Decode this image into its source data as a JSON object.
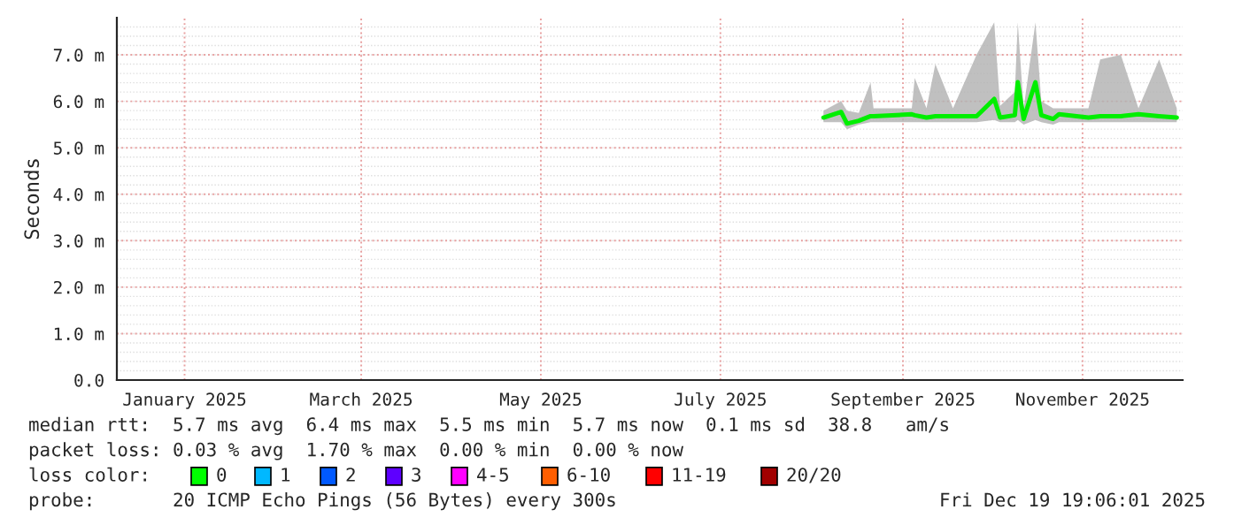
{
  "chart_data": {
    "type": "line",
    "ylabel": "Seconds",
    "x": [
      "2025-08-19",
      "2025-08-25",
      "2025-08-27",
      "2025-08-31",
      "2025-09-04",
      "2025-09-05",
      "2025-09-18",
      "2025-09-19",
      "2025-09-23",
      "2025-09-26",
      "2025-10-02",
      "2025-10-10",
      "2025-10-16",
      "2025-10-18",
      "2025-10-23",
      "2025-10-24",
      "2025-10-26",
      "2025-10-30",
      "2025-11-01",
      "2025-11-05",
      "2025-11-07",
      "2025-11-17",
      "2025-11-21",
      "2025-11-28",
      "2025-12-04",
      "2025-12-11",
      "2025-12-17"
    ],
    "series": [
      {
        "color": "#00ee00",
        "values": [
          5.65,
          5.77,
          5.52,
          5.58,
          5.68,
          5.68,
          5.72,
          5.7,
          5.65,
          5.68,
          5.68,
          5.68,
          6.05,
          5.65,
          5.7,
          6.41,
          5.62,
          6.41,
          5.7,
          5.62,
          5.72,
          5.65,
          5.68,
          5.68,
          5.72,
          5.68,
          5.65
        ],
        "lower": [
          5.55,
          5.55,
          5.4,
          5.5,
          5.55,
          5.55,
          5.55,
          5.55,
          5.55,
          5.55,
          5.55,
          5.55,
          5.6,
          5.55,
          5.55,
          5.6,
          5.5,
          5.6,
          5.55,
          5.5,
          5.55,
          5.55,
          5.55,
          5.55,
          5.55,
          5.55,
          5.55
        ],
        "upper": [
          5.8,
          6.0,
          5.8,
          5.75,
          6.4,
          5.85,
          5.85,
          6.5,
          5.85,
          6.8,
          5.85,
          7.0,
          7.7,
          5.9,
          6.2,
          7.7,
          5.85,
          7.7,
          6.0,
          5.85,
          5.85,
          5.85,
          6.9,
          7.0,
          5.85,
          6.9,
          5.85
        ]
      }
    ],
    "xlim": [
      "2024-12-22",
      "2025-12-19"
    ],
    "xticks": [
      {
        "value": "2025-01-14",
        "label": "January 2025"
      },
      {
        "value": "2025-03-15",
        "label": "March 2025"
      },
      {
        "value": "2025-05-15",
        "label": "May 2025"
      },
      {
        "value": "2025-07-15",
        "label": "July 2025"
      },
      {
        "value": "2025-09-15",
        "label": "September 2025"
      },
      {
        "value": "2025-11-15",
        "label": "November 2025"
      }
    ],
    "ylim": [
      0,
      7.8
    ],
    "yticks": [
      {
        "value": 0,
        "label": "0.0"
      },
      {
        "value": 1,
        "label": "1.0 m"
      },
      {
        "value": 2,
        "label": "2.0 m"
      },
      {
        "value": 3,
        "label": "3.0 m"
      },
      {
        "value": 4,
        "label": "4.0 m"
      },
      {
        "value": 5,
        "label": "5.0 m"
      },
      {
        "value": 6,
        "label": "6.0 m"
      },
      {
        "value": 7,
        "label": "7.0 m"
      }
    ],
    "grid": true,
    "marker": "none",
    "line_style": "solid",
    "legend": false,
    "annotations": [
      "median rtt:  5.7 ms avg  6.4 ms max  5.5 ms min  5.7 ms now  0.1 ms sd  38.8   am/s",
      "packet loss: 0.03 % avg  1.70 % max  0.00 % min  0.00 % now",
      "loss color:",
      "0",
      "1",
      "2",
      "3",
      "4-5",
      "6-10",
      "11-19",
      "20/20",
      "probe:       20 ICMP Echo Pings (56 Bytes) every 300s",
      "Fri Dec 19 19:06:01 2025"
    ]
  }
}
